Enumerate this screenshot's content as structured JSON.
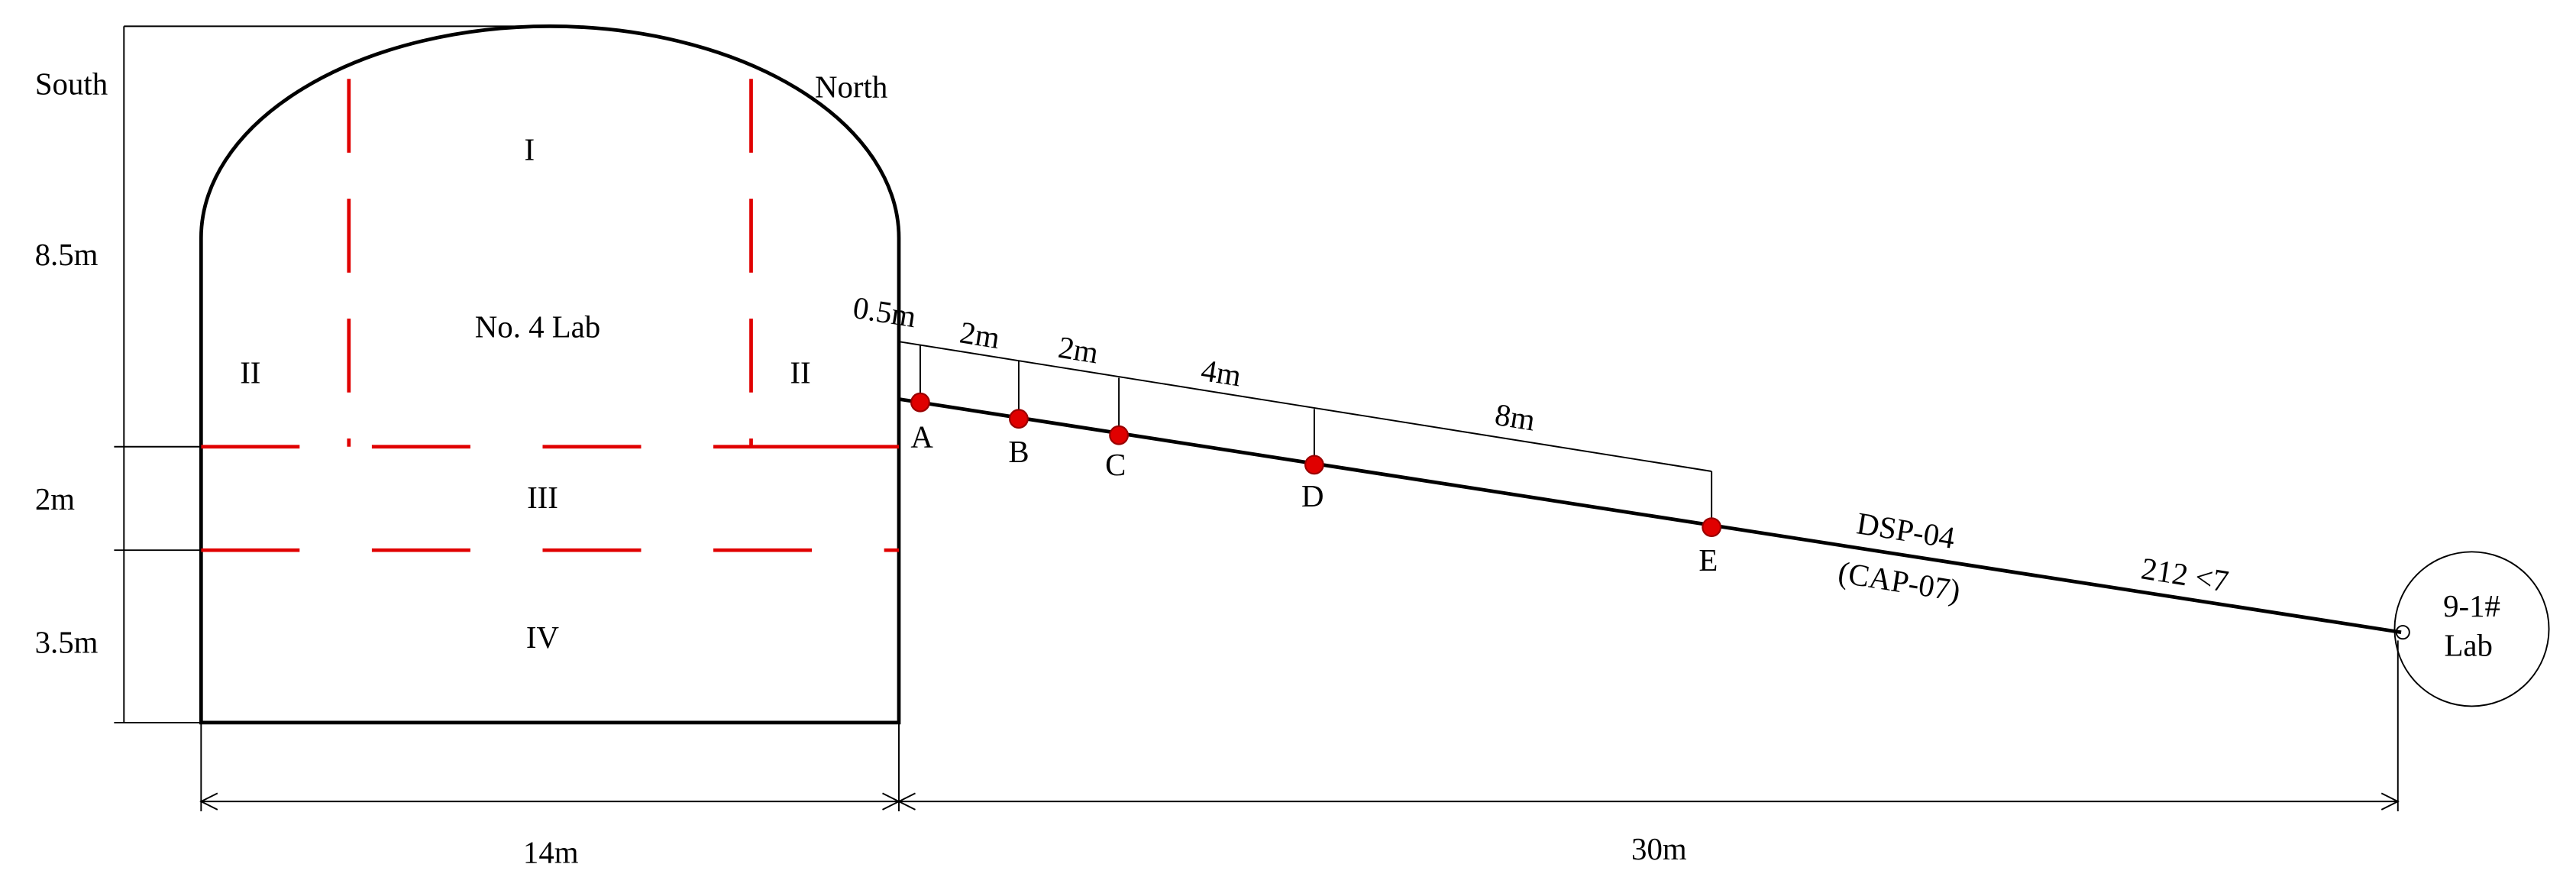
{
  "diagram": {
    "directions": {
      "south": "South",
      "north": "North"
    },
    "zones": {
      "I": "I",
      "lab": "No. 4 Lab",
      "II_left": "II",
      "II_right": "II",
      "III": "III",
      "IV": "IV"
    },
    "dimensions": {
      "height_arch": "8.5m",
      "height_mid": "2m",
      "height_low": "3.5m",
      "width": "14m",
      "distance": "30m"
    },
    "spacings": [
      "0.5m",
      "2m",
      "2m",
      "4m",
      "8m"
    ],
    "points": [
      "A",
      "B",
      "C",
      "D",
      "E"
    ],
    "borehole": {
      "name": "DSP-04",
      "alt": "(CAP-07)",
      "spec": "212 <7"
    },
    "target": {
      "line1": "9-1#",
      "line2": "Lab"
    }
  }
}
